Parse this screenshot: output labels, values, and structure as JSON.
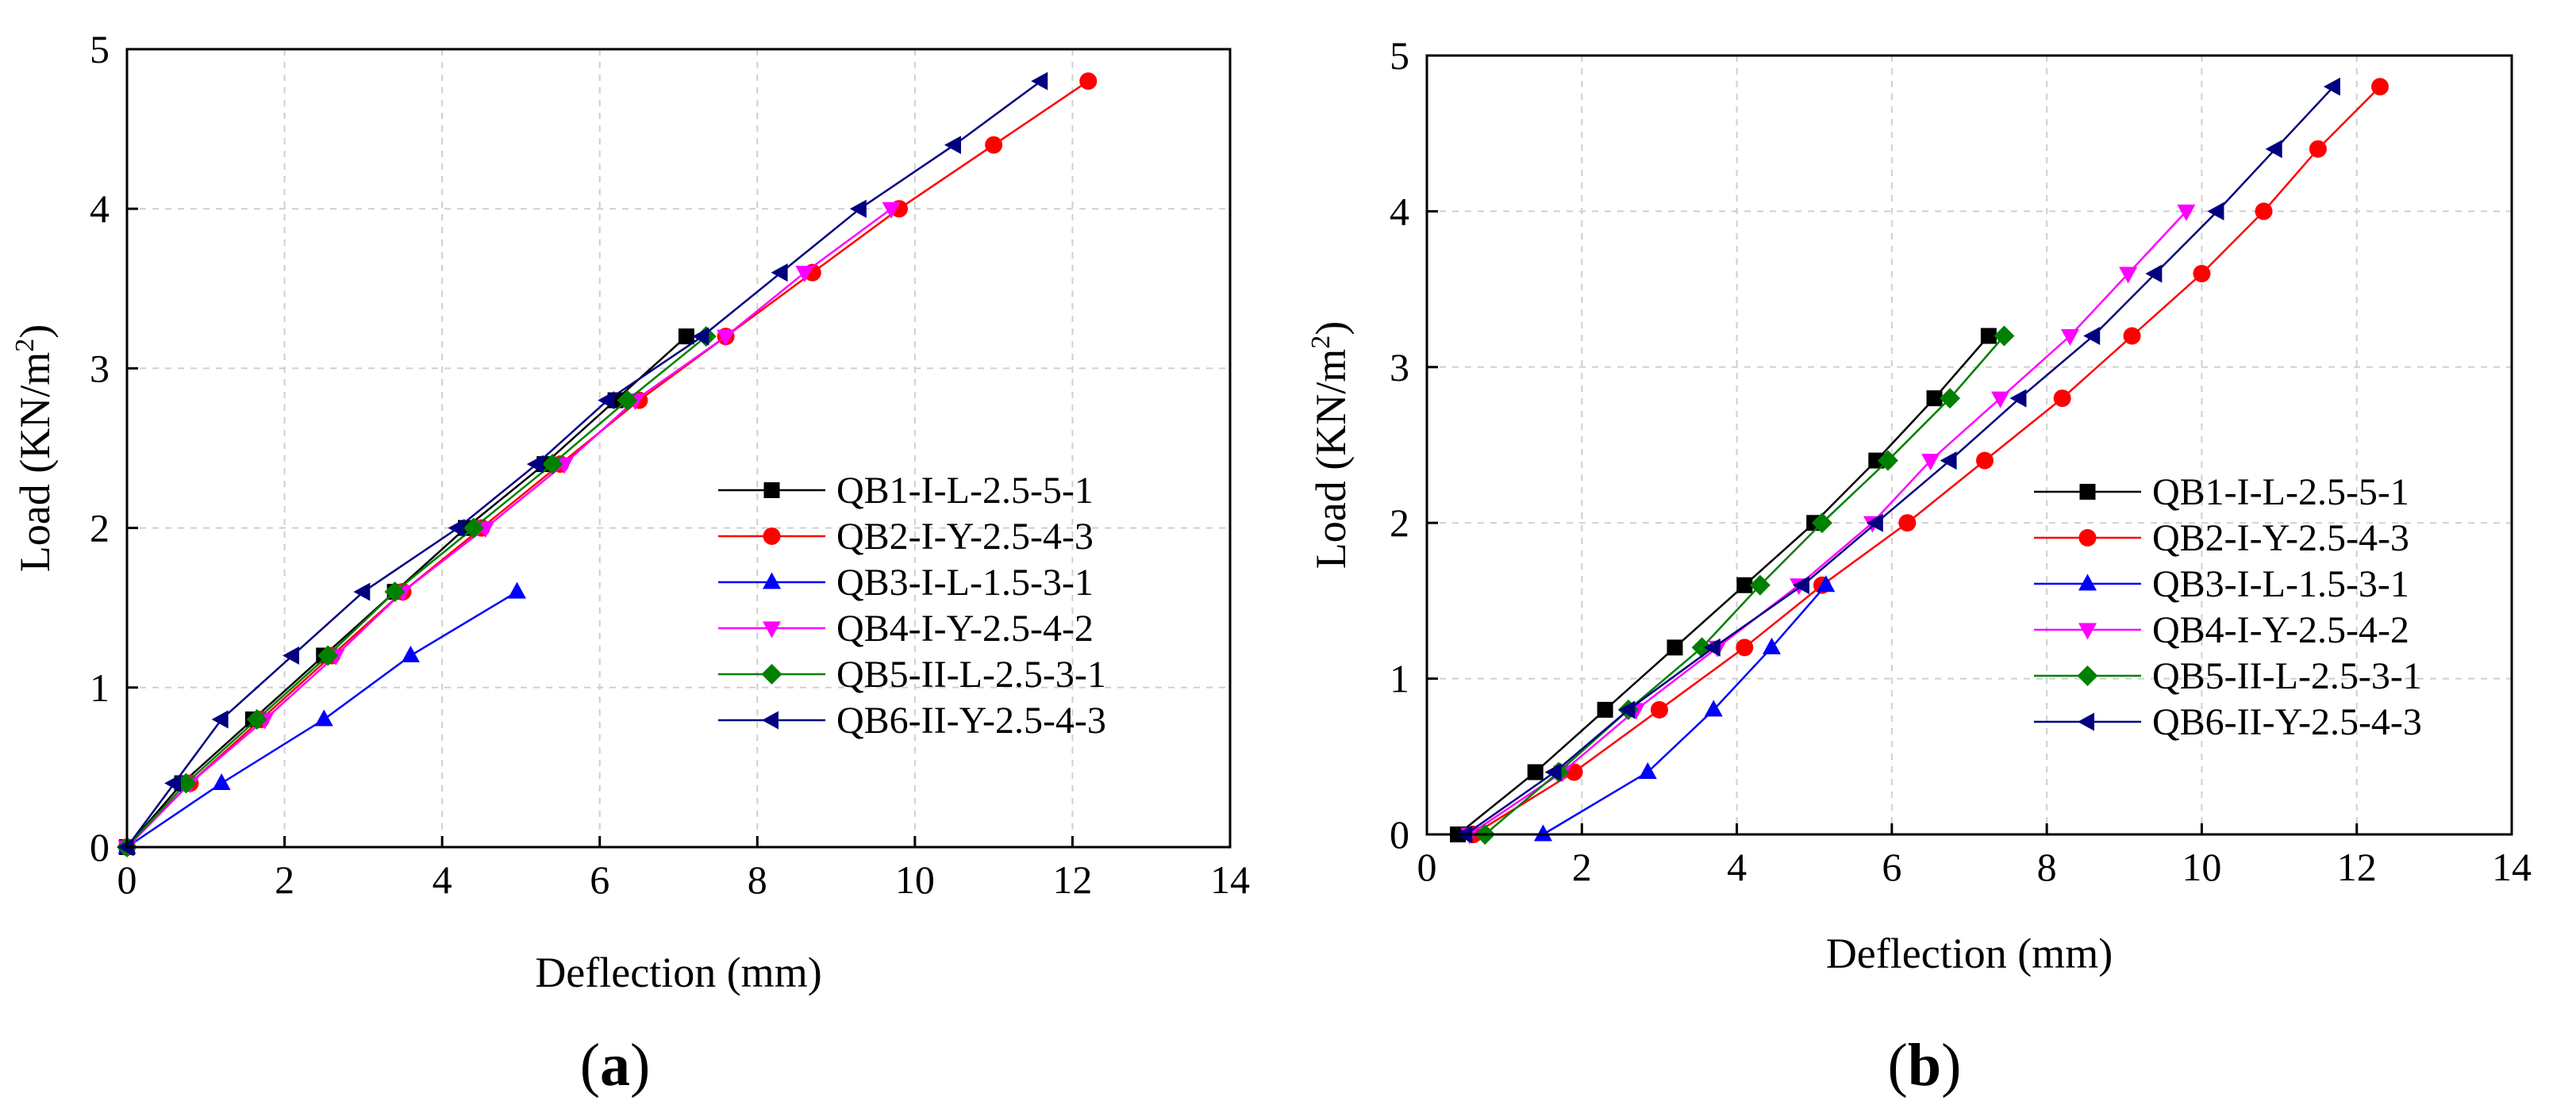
{
  "figure": {
    "panel_a_label": "a",
    "panel_b_label": "b"
  },
  "chart_data": [
    {
      "id": "a",
      "type": "line",
      "xlabel": "Deflection (mm)",
      "ylabel": "Load (KN/m",
      "ylabel_sup": "2",
      "ylabel_end": ")",
      "xlim": [
        0,
        14
      ],
      "ylim": [
        0,
        5
      ],
      "xticks": [
        0,
        2,
        4,
        6,
        8,
        10,
        12,
        14
      ],
      "yticks": [
        0,
        1,
        2,
        3,
        4,
        5
      ],
      "grid": true,
      "legend_position": "right",
      "series": [
        {
          "name": "QB1-I-L-2.5-5-1",
          "color": "#000000",
          "marker": "square",
          "x": [
            0,
            0.7,
            1.6,
            2.5,
            3.4,
            4.3,
            5.3,
            6.2,
            7.1
          ],
          "y": [
            0,
            0.4,
            0.8,
            1.2,
            1.6,
            2.0,
            2.4,
            2.8,
            3.2
          ]
        },
        {
          "name": "QB2-I-Y-2.5-4-3",
          "color": "#ff0000",
          "marker": "circle",
          "x": [
            0,
            0.8,
            1.7,
            2.6,
            3.5,
            4.5,
            5.5,
            6.5,
            7.6,
            8.7,
            9.8,
            11.0,
            12.2
          ],
          "y": [
            0,
            0.4,
            0.8,
            1.2,
            1.6,
            2.0,
            2.4,
            2.8,
            3.2,
            3.6,
            4.0,
            4.4,
            4.8
          ]
        },
        {
          "name": "QB3-I-L-1.5-3-1",
          "color": "#0000ff",
          "marker": "triangle-up",
          "x": [
            0,
            1.2,
            2.5,
            3.6,
            4.95
          ],
          "y": [
            0,
            0.4,
            0.8,
            1.2,
            1.6
          ]
        },
        {
          "name": "QB4-I-Y-2.5-4-2",
          "color": "#ff00ff",
          "marker": "triangle-down",
          "x": [
            0,
            0.8,
            1.75,
            2.65,
            3.5,
            4.55,
            5.55,
            6.45,
            7.6,
            8.6,
            9.7
          ],
          "y": [
            0,
            0.4,
            0.8,
            1.2,
            1.6,
            2.0,
            2.4,
            2.8,
            3.2,
            3.6,
            4.0
          ]
        },
        {
          "name": "QB5-II-L-2.5-3-1",
          "color": "#008000",
          "marker": "diamond",
          "x": [
            0,
            0.75,
            1.65,
            2.55,
            3.4,
            4.4,
            5.4,
            6.35,
            7.35
          ],
          "y": [
            0,
            0.4,
            0.8,
            1.2,
            1.6,
            2.0,
            2.4,
            2.8,
            3.2
          ]
        },
        {
          "name": "QB6-II-Y-2.5-4-3",
          "color": "#000080",
          "marker": "triangle-left",
          "x": [
            0,
            0.6,
            1.2,
            2.1,
            3.0,
            4.2,
            5.2,
            6.1,
            7.3,
            8.3,
            9.3,
            10.5,
            11.6
          ],
          "y": [
            0,
            0.4,
            0.8,
            1.2,
            1.6,
            2.0,
            2.4,
            2.8,
            3.2,
            3.6,
            4.0,
            4.4,
            4.8
          ]
        }
      ]
    },
    {
      "id": "b",
      "type": "line",
      "xlabel": "Deflection (mm)",
      "ylabel": "Load (KN/m",
      "ylabel_sup": "2",
      "ylabel_end": ")",
      "xlim": [
        0,
        14
      ],
      "ylim": [
        0,
        5
      ],
      "xticks": [
        0,
        2,
        4,
        6,
        8,
        10,
        12,
        14
      ],
      "yticks": [
        0,
        1,
        2,
        3,
        4,
        5
      ],
      "grid": true,
      "legend_position": "bottom-right",
      "series": [
        {
          "name": "QB1-I-L-2.5-5-1",
          "color": "#000000",
          "marker": "square",
          "x": [
            0.4,
            1.4,
            2.3,
            3.2,
            4.1,
            5.0,
            5.8,
            6.55,
            7.25
          ],
          "y": [
            0,
            0.4,
            0.8,
            1.2,
            1.6,
            2.0,
            2.4,
            2.8,
            3.2
          ]
        },
        {
          "name": "QB2-I-Y-2.5-4-3",
          "color": "#ff0000",
          "marker": "circle",
          "x": [
            0.6,
            1.9,
            3.0,
            4.1,
            5.1,
            6.2,
            7.2,
            8.2,
            9.1,
            10.0,
            10.8,
            11.5,
            12.3
          ],
          "y": [
            0,
            0.4,
            0.8,
            1.2,
            1.6,
            2.0,
            2.4,
            2.8,
            3.2,
            3.6,
            4.0,
            4.4,
            4.8
          ]
        },
        {
          "name": "QB3-I-L-1.5-3-1",
          "color": "#0000ff",
          "marker": "triangle-up",
          "x": [
            1.5,
            2.85,
            3.7,
            4.45,
            5.15
          ],
          "y": [
            0,
            0.4,
            0.8,
            1.2,
            1.6
          ]
        },
        {
          "name": "QB4-I-Y-2.5-4-2",
          "color": "#ff00ff",
          "marker": "triangle-down",
          "x": [
            0.55,
            1.75,
            2.7,
            3.75,
            4.8,
            5.75,
            6.5,
            7.4,
            8.3,
            9.05,
            9.8
          ],
          "y": [
            0,
            0.4,
            0.8,
            1.2,
            1.6,
            2.0,
            2.4,
            2.8,
            3.2,
            3.6,
            4.0
          ]
        },
        {
          "name": "QB5-II-L-2.5-3-1",
          "color": "#008000",
          "marker": "diamond",
          "x": [
            0.75,
            1.7,
            2.6,
            3.55,
            4.3,
            5.1,
            5.95,
            6.75,
            7.45
          ],
          "y": [
            0,
            0.4,
            0.8,
            1.2,
            1.6,
            2.0,
            2.4,
            2.8,
            3.2
          ]
        },
        {
          "name": "QB6-II-Y-2.5-4-3",
          "color": "#000080",
          "marker": "triangle-left",
          "x": [
            0.5,
            1.65,
            2.6,
            3.7,
            4.85,
            5.8,
            6.75,
            7.65,
            8.6,
            9.4,
            10.2,
            10.95,
            11.7
          ],
          "y": [
            0,
            0.4,
            0.8,
            1.2,
            1.6,
            2.0,
            2.4,
            2.8,
            3.2,
            3.6,
            4.0,
            4.4,
            4.8
          ]
        }
      ]
    }
  ]
}
